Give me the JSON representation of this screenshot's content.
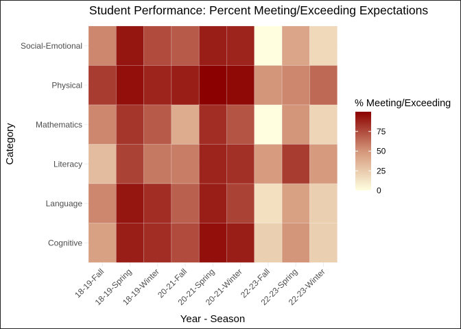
{
  "chart_data": {
    "type": "heatmap",
    "title": "Student Performance: Percent Meeting/Exceeding Expectations",
    "xlabel": "Year - Season",
    "ylabel": "Category",
    "x_categories": [
      "18-19-Fall",
      "18-19-Spring",
      "18-19-Winter",
      "20-21-Fall",
      "20-21-Spring",
      "20-21-Winter",
      "22-23-Fall",
      "22-23-Spring",
      "22-23-Winter"
    ],
    "y_categories": [
      "Social-Emotional",
      "Physical",
      "Mathematics",
      "Literacy",
      "Language",
      "Cognitive"
    ],
    "values": [
      [
        55,
        93,
        75,
        70,
        90,
        88,
        0,
        43,
        18
      ],
      [
        80,
        95,
        88,
        90,
        100,
        97,
        50,
        55,
        65
      ],
      [
        55,
        82,
        70,
        40,
        85,
        72,
        0,
        50,
        20
      ],
      [
        32,
        78,
        60,
        58,
        88,
        84,
        47,
        80,
        48
      ],
      [
        55,
        93,
        85,
        68,
        90,
        78,
        15,
        45,
        23
      ],
      [
        45,
        90,
        85,
        75,
        95,
        90,
        23,
        50,
        23
      ]
    ],
    "legend": {
      "title": "% Meeting/Exceeding",
      "ticks": [
        0,
        25,
        50,
        75
      ],
      "range": [
        0,
        100
      ],
      "position": "right"
    },
    "color_scale": {
      "low": "#ffffe0",
      "mid": "#d4967a",
      "high": "#8b0000"
    },
    "grid": true
  }
}
